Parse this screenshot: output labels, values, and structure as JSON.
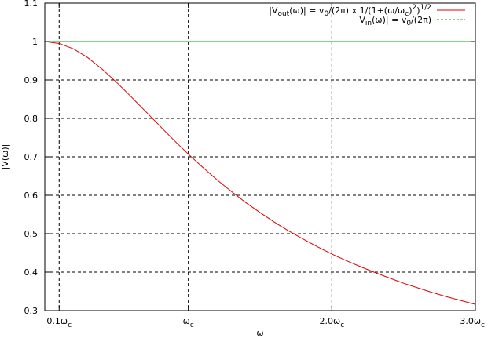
{
  "chart_data": {
    "type": "line",
    "title": "",
    "xlabel": "ω",
    "ylabel": "|V(ω)|",
    "xlim": [
      0.0,
      3.0
    ],
    "ylim": [
      0.3,
      1.1
    ],
    "grid": true,
    "legend_position": "top-right",
    "x_ticks": [
      {
        "value": 0.1,
        "label": "0.1ω",
        "sub": "c"
      },
      {
        "value": 1.0,
        "label": "ω",
        "sub": "c"
      },
      {
        "value": 2.0,
        "label": "2.0ω",
        "sub": "c"
      },
      {
        "value": 3.0,
        "label": "3.0ω",
        "sub": "c"
      }
    ],
    "y_ticks": [
      {
        "value": 0.3,
        "label": "0.3"
      },
      {
        "value": 0.4,
        "label": "0.4"
      },
      {
        "value": 0.5,
        "label": "0.5"
      },
      {
        "value": 0.6,
        "label": "0.6"
      },
      {
        "value": 0.7,
        "label": "0.7"
      },
      {
        "value": 0.8,
        "label": "0.8"
      },
      {
        "value": 0.9,
        "label": "0.9"
      },
      {
        "value": 1.0,
        "label": "1"
      },
      {
        "value": 1.1,
        "label": "1.1"
      }
    ],
    "series": [
      {
        "name": "|Vout(ω)| = v0/(2π) x 1/(1+(ω/ωc)^2)^1/2",
        "color": "#e00000",
        "x": [
          0.0,
          0.1,
          0.2,
          0.3,
          0.4,
          0.5,
          0.6,
          0.7,
          0.8,
          0.9,
          1.0,
          1.1,
          1.2,
          1.3,
          1.4,
          1.5,
          1.6,
          1.7,
          1.8,
          1.9,
          2.0,
          2.1,
          2.2,
          2.3,
          2.4,
          2.5,
          2.6,
          2.7,
          2.8,
          2.9,
          3.0
        ],
        "y": [
          1.0,
          0.995,
          0.981,
          0.958,
          0.928,
          0.894,
          0.857,
          0.819,
          0.781,
          0.743,
          0.707,
          0.673,
          0.64,
          0.61,
          0.581,
          0.555,
          0.53,
          0.507,
          0.486,
          0.466,
          0.447,
          0.43,
          0.414,
          0.399,
          0.385,
          0.371,
          0.359,
          0.347,
          0.336,
          0.326,
          0.316
        ]
      },
      {
        "name": "|Vin(ω)| = v0/(2π)",
        "color": "#00b000",
        "x": [
          0.0,
          3.0
        ],
        "y": [
          1.0,
          1.0
        ]
      }
    ],
    "legend": {
      "entries": [
        {
          "parts": [
            {
              "text": "|V"
            },
            {
              "text": "out",
              "shift": "sub"
            },
            {
              "text": "(ω)| = v"
            },
            {
              "text": "0",
              "shift": "sub"
            },
            {
              "text": "/(2π) x 1/(1+(ω/ω"
            },
            {
              "text": "c",
              "shift": "sub"
            },
            {
              "text": ")"
            },
            {
              "text": "2",
              "shift": "super"
            },
            {
              "text": ")"
            },
            {
              "text": "1/2",
              "shift": "super"
            }
          ]
        },
        {
          "parts": [
            {
              "text": "|V"
            },
            {
              "text": "in",
              "shift": "sub"
            },
            {
              "text": "(ω)| = v"
            },
            {
              "text": "0",
              "shift": "sub"
            },
            {
              "text": "/(2π)"
            }
          ]
        }
      ]
    }
  }
}
